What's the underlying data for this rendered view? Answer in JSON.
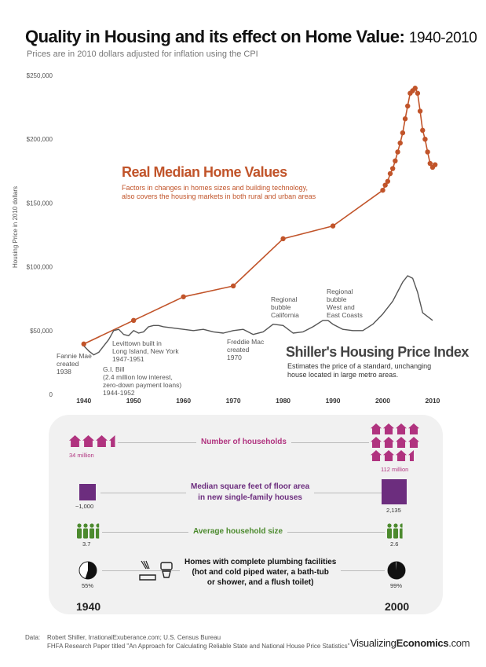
{
  "header": {
    "title": "Quality in Housing and its effect on Home Value:",
    "title_years": "1940-2010",
    "subtitle": "Prices are in 2010 dollars adjusted for inflation using the CPI"
  },
  "chart_data": {
    "type": "line",
    "ylabel": "Housing Price in 2010 dollars",
    "ylim": [
      0,
      250000
    ],
    "xlim": [
      1935,
      2013
    ],
    "y_ticks": [
      0,
      50000,
      100000,
      150000,
      200000,
      250000
    ],
    "y_tick_labels": [
      "0",
      "$50,000",
      "$100,000",
      "$150,000",
      "$200,000",
      "$250,000"
    ],
    "x_ticks": [
      1940,
      1950,
      1960,
      1970,
      1980,
      1990,
      2000,
      2010
    ],
    "x_tick_labels": [
      "1940",
      "1950",
      "1960",
      "1970",
      "1980",
      "1990",
      "2000",
      "2010"
    ],
    "series": [
      {
        "name": "Real Median Home Values",
        "description": "Factors in changes in homes sizes and building technology,\nalso covers the housing markets in both rural and urban areas",
        "color": "#c1542a",
        "x": [
          1940,
          1950,
          1960,
          1970,
          1980,
          1990,
          2000,
          2000.5,
          2001,
          2001.5,
          2002,
          2002.5,
          2003,
          2003.5,
          2004,
          2004.5,
          2005,
          2005.5,
          2006,
          2006.5,
          2007,
          2007.5,
          2008,
          2008.5,
          2009,
          2009.5,
          2010,
          2010.5
        ],
        "y": [
          39500,
          58000,
          76500,
          85000,
          122000,
          132000,
          160000,
          164000,
          167000,
          173000,
          177000,
          183000,
          190000,
          197000,
          205000,
          216000,
          226000,
          236000,
          238000,
          240000,
          236000,
          222000,
          207000,
          200000,
          190000,
          181000,
          178000,
          180000
        ]
      },
      {
        "name": "Shiller's Housing Price Index",
        "description": "Estimates the price of a standard, unchanging\nhouse located in large metro areas.",
        "color": "#555555",
        "x": [
          1940,
          1941,
          1942,
          1943,
          1944,
          1945,
          1946,
          1947,
          1948,
          1949,
          1950,
          1951,
          1952,
          1953,
          1954,
          1955,
          1956,
          1958,
          1960,
          1962,
          1964,
          1966,
          1968,
          1970,
          1972,
          1974,
          1976,
          1978,
          1980,
          1982,
          1984,
          1986,
          1988,
          1989,
          1990,
          1992,
          1994,
          1996,
          1998,
          2000,
          2002,
          2004,
          2005,
          2006,
          2007,
          2008,
          2009,
          2010
        ],
        "y": [
          38000,
          34000,
          31000,
          33000,
          38000,
          43000,
          50000,
          51000,
          47000,
          46000,
          50000,
          48000,
          49000,
          53000,
          54000,
          54000,
          53000,
          52000,
          51000,
          50000,
          51000,
          49000,
          48000,
          50000,
          51000,
          47000,
          49000,
          55000,
          54000,
          48000,
          49000,
          53000,
          58000,
          58000,
          55000,
          51000,
          50000,
          50000,
          55000,
          63000,
          73000,
          88000,
          93000,
          91000,
          80000,
          64000,
          61000,
          58000
        ]
      }
    ],
    "annotations": [
      {
        "year": 1938,
        "text": "Fannie Mae\ncreated\n1938"
      },
      {
        "year": 1947,
        "text": "Levittown built in\nLong Island, New York\n1947-1951"
      },
      {
        "year": 1944,
        "text": "G.I. Bill\n(2.4 million low interest,\nzero-down payment loans)\n1944-1952"
      },
      {
        "year": 1970,
        "text": "Freddie Mac\ncreated\n1970"
      },
      {
        "year": 1978,
        "text": "Regional\nbubble\nCalifornia"
      },
      {
        "year": 1988,
        "text": "Regional\nbubble\nWest and\nEast Coasts"
      }
    ]
  },
  "comparison": {
    "rows": [
      {
        "label": "Number of households",
        "left_value": "34 million",
        "right_value": "112 million",
        "icon": "house-icon",
        "color": "#b0337f",
        "left_count": 3.5,
        "right_count": 11.5
      },
      {
        "label": "Median square feet of floor area\nin new single-family houses",
        "left_value": "~1,000",
        "right_value": "2,135",
        "icon": "square-icon",
        "color": "#6c2d7e"
      },
      {
        "label": "Average household size",
        "left_value": "3.7",
        "right_value": "2.6",
        "icon": "person-icon",
        "color": "#4c8a2e",
        "left_count": 3.7,
        "right_count": 2.6
      },
      {
        "label": "Homes with complete plumbing facilities\n(hot and cold piped water, a bath-tub\nor shower, and a flush toilet)",
        "left_value": "55%",
        "right_value": "99%",
        "icon": "pie-icon",
        "color": "#111111",
        "left_pct": 55,
        "right_pct": 99
      }
    ],
    "left_year": "1940",
    "right_year": "2000"
  },
  "footer": {
    "source_label": "Data:",
    "source_line1": "Robert Shiller, IrrationalExuberance.com; U.S. Census Bureau",
    "source_line2": "FHFA Research Paper titled \"An Approach for Calculating Reliable State and National House Price Statistics\"",
    "brand_a": "Visualizing",
    "brand_b": "Economics",
    "brand_c": ".com"
  }
}
